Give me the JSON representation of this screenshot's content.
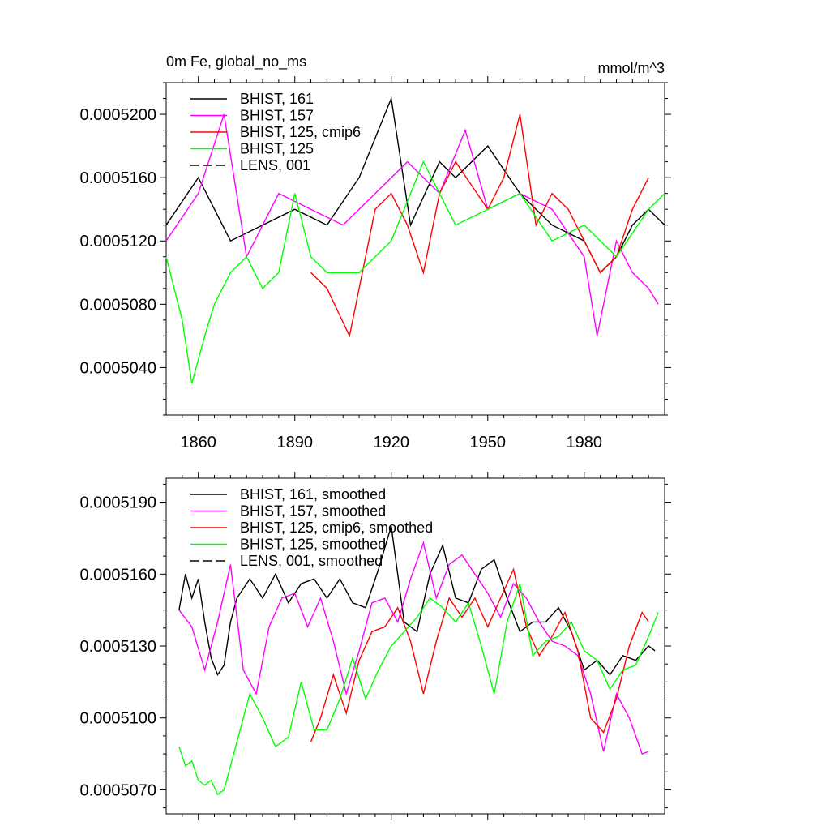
{
  "colors": {
    "BHIST_161": "#000000",
    "BHIST_157": "#ff00ff",
    "BHIST_125_cmip6": "#ff0000",
    "BHIST_125": "#00ff00",
    "LENS_001": "#000000"
  },
  "chart_data": [
    {
      "type": "line",
      "title": "0m Fe, global_no_ms",
      "units": "mmol/m^3",
      "xlim": [
        1850,
        2005
      ],
      "ylim": [
        0.000501,
        0.000522
      ],
      "x_ticks": [
        "1860",
        "1890",
        "1920",
        "1950",
        "1980"
      ],
      "y_ticks": [
        "0.0005040",
        "0.0005080",
        "0.0005120",
        "0.0005160",
        "0.0005200"
      ],
      "legend": [
        "BHIST, 161",
        "BHIST, 157",
        "BHIST, 125, cmip6",
        "BHIST, 125",
        "LENS, 001"
      ],
      "series": [
        {
          "name": "BHIST, 161",
          "color_key": "BHIST_161",
          "dash": "solid",
          "x": [
            1850,
            1860,
            1870,
            1880,
            1890,
            1900,
            1910,
            1920,
            1926,
            1935,
            1940,
            1950,
            1960,
            1970,
            1980,
            1985,
            1990,
            1995,
            2000,
            2005
          ],
          "y": [
            0.000513,
            0.000516,
            0.000512,
            0.000513,
            0.000514,
            0.000513,
            0.000516,
            0.000521,
            0.000513,
            0.000517,
            0.000516,
            0.000518,
            0.000515,
            0.000513,
            0.000512,
            0.00051,
            0.000511,
            0.000513,
            0.000514,
            0.000513
          ]
        },
        {
          "name": "BHIST, 157",
          "color_key": "BHIST_157",
          "dash": "solid",
          "x": [
            1850,
            1860,
            1868,
            1875,
            1885,
            1895,
            1905,
            1915,
            1925,
            1935,
            1943,
            1950,
            1960,
            1970,
            1980,
            1984,
            1990,
            1995,
            2000,
            2003
          ],
          "y": [
            0.000512,
            0.000515,
            0.00052,
            0.000511,
            0.000515,
            0.000514,
            0.000513,
            0.000515,
            0.000517,
            0.000515,
            0.000519,
            0.000514,
            0.000515,
            0.000514,
            0.000511,
            0.000506,
            0.000512,
            0.00051,
            0.000509,
            0.000508
          ]
        },
        {
          "name": "BHIST, 125, cmip6",
          "color_key": "BHIST_125_cmip6",
          "dash": "solid",
          "x": [
            1895,
            1900,
            1907,
            1915,
            1920,
            1925,
            1930,
            1935,
            1940,
            1950,
            1955,
            1960,
            1965,
            1970,
            1975,
            1980,
            1985,
            1990,
            1995,
            2000
          ],
          "y": [
            0.00051,
            0.000509,
            0.000506,
            0.000514,
            0.000515,
            0.000513,
            0.00051,
            0.000515,
            0.000517,
            0.000514,
            0.000516,
            0.00052,
            0.000513,
            0.000515,
            0.000514,
            0.000512,
            0.00051,
            0.000511,
            0.000514,
            0.000516
          ]
        },
        {
          "name": "BHIST, 125",
          "color_key": "BHIST_125",
          "dash": "solid",
          "x": [
            1850,
            1855,
            1858,
            1862,
            1865,
            1870,
            1875,
            1880,
            1885,
            1890,
            1895,
            1900,
            1910,
            1920,
            1930,
            1940,
            1950,
            1960,
            1970,
            1980,
            1990,
            2000,
            2005
          ],
          "y": [
            0.000511,
            0.000507,
            0.000503,
            0.000506,
            0.000508,
            0.00051,
            0.000511,
            0.000509,
            0.00051,
            0.000515,
            0.000511,
            0.00051,
            0.00051,
            0.000512,
            0.000517,
            0.000513,
            0.000514,
            0.000515,
            0.000512,
            0.000513,
            0.000511,
            0.000514,
            0.000515
          ]
        }
      ]
    },
    {
      "type": "line",
      "title": "",
      "units": "",
      "xlim": [
        1850,
        2005
      ],
      "ylim": [
        0.000506,
        0.00052
      ],
      "x_ticks": [],
      "y_ticks": [
        "0.0005070",
        "0.0005100",
        "0.0005130",
        "0.0005160",
        "0.0005190"
      ],
      "legend": [
        "BHIST, 161, smoothed",
        "BHIST, 157, smoothed",
        "BHIST, 125, cmip6, smoothed",
        "BHIST, 125, smoothed",
        "LENS, 001, smoothed"
      ],
      "series": [
        {
          "name": "BHIST, 161, smoothed",
          "color_key": "BHIST_161",
          "dash": "solid",
          "x": [
            1854,
            1856,
            1858,
            1860,
            1862,
            1864,
            1866,
            1868,
            1870,
            1872,
            1876,
            1880,
            1884,
            1888,
            1892,
            1896,
            1900,
            1904,
            1908,
            1912,
            1916,
            1920,
            1924,
            1928,
            1932,
            1936,
            1940,
            1944,
            1948,
            1952,
            1956,
            1960,
            1964,
            1968,
            1972,
            1976,
            1980,
            1984,
            1988,
            1992,
            1996,
            2000,
            2002
          ],
          "y": [
            0.0005145,
            0.000516,
            0.000515,
            0.0005158,
            0.000514,
            0.0005125,
            0.0005118,
            0.0005122,
            0.000514,
            0.000515,
            0.0005158,
            0.000515,
            0.000516,
            0.0005148,
            0.0005156,
            0.0005158,
            0.000515,
            0.0005158,
            0.0005148,
            0.0005146,
            0.0005162,
            0.000518,
            0.000514,
            0.0005136,
            0.000516,
            0.0005172,
            0.000515,
            0.0005148,
            0.0005162,
            0.0005166,
            0.000515,
            0.0005136,
            0.000514,
            0.000514,
            0.0005146,
            0.0005136,
            0.000512,
            0.0005124,
            0.0005118,
            0.0005126,
            0.0005124,
            0.000513,
            0.0005128
          ]
        },
        {
          "name": "BHIST, 157, smoothed",
          "color_key": "BHIST_157",
          "dash": "solid",
          "x": [
            1854,
            1858,
            1862,
            1866,
            1870,
            1874,
            1878,
            1882,
            1886,
            1890,
            1894,
            1898,
            1902,
            1906,
            1910,
            1914,
            1918,
            1922,
            1926,
            1930,
            1934,
            1938,
            1942,
            1946,
            1950,
            1954,
            1958,
            1962,
            1966,
            1970,
            1974,
            1978,
            1982,
            1986,
            1990,
            1994,
            1998,
            2000
          ],
          "y": [
            0.0005145,
            0.0005138,
            0.000512,
            0.000514,
            0.0005164,
            0.000512,
            0.000511,
            0.0005138,
            0.000515,
            0.0005152,
            0.0005138,
            0.000515,
            0.0005132,
            0.000511,
            0.0005128,
            0.0005148,
            0.000515,
            0.000514,
            0.0005158,
            0.0005173,
            0.000515,
            0.0005164,
            0.0005168,
            0.000516,
            0.0005152,
            0.0005142,
            0.0005156,
            0.000515,
            0.000514,
            0.0005132,
            0.000513,
            0.0005126,
            0.000511,
            0.0005086,
            0.000511,
            0.00051,
            0.0005085,
            0.0005086
          ]
        },
        {
          "name": "BHIST, 125, cmip6, smoothed",
          "color_key": "BHIST_125_cmip6",
          "dash": "solid",
          "x": [
            1895,
            1898,
            1902,
            1906,
            1910,
            1914,
            1918,
            1922,
            1926,
            1930,
            1934,
            1938,
            1942,
            1946,
            1950,
            1954,
            1958,
            1962,
            1966,
            1970,
            1974,
            1978,
            1982,
            1986,
            1990,
            1994,
            1998,
            2000
          ],
          "y": [
            0.000509,
            0.00051,
            0.0005118,
            0.0005102,
            0.0005124,
            0.0005136,
            0.0005138,
            0.0005146,
            0.0005132,
            0.000511,
            0.0005132,
            0.000515,
            0.0005142,
            0.000515,
            0.0005138,
            0.000515,
            0.0005162,
            0.0005138,
            0.0005126,
            0.0005134,
            0.0005144,
            0.0005128,
            0.00051,
            0.0005094,
            0.0005108,
            0.000513,
            0.0005144,
            0.000514
          ]
        },
        {
          "name": "BHIST, 125, smoothed",
          "color_key": "BHIST_125",
          "dash": "solid",
          "x": [
            1854,
            1856,
            1858,
            1860,
            1862,
            1864,
            1866,
            1868,
            1870,
            1872,
            1876,
            1880,
            1884,
            1888,
            1892,
            1896,
            1900,
            1904,
            1908,
            1912,
            1916,
            1920,
            1924,
            1928,
            1932,
            1936,
            1940,
            1944,
            1948,
            1952,
            1956,
            1960,
            1964,
            1968,
            1972,
            1976,
            1980,
            1984,
            1988,
            1992,
            1996,
            2000,
            2003
          ],
          "y": [
            0.0005088,
            0.000508,
            0.0005082,
            0.0005074,
            0.0005072,
            0.0005074,
            0.0005068,
            0.000507,
            0.000508,
            0.000509,
            0.000511,
            0.00051,
            0.0005088,
            0.0005092,
            0.0005115,
            0.0005095,
            0.0005095,
            0.0005108,
            0.0005125,
            0.0005108,
            0.000512,
            0.000513,
            0.0005136,
            0.0005142,
            0.000515,
            0.0005146,
            0.000514,
            0.0005148,
            0.000513,
            0.000511,
            0.000514,
            0.0005156,
            0.0005126,
            0.0005132,
            0.0005134,
            0.000514,
            0.0005128,
            0.0005124,
            0.0005112,
            0.000512,
            0.0005122,
            0.0005134,
            0.0005144
          ]
        }
      ]
    }
  ]
}
